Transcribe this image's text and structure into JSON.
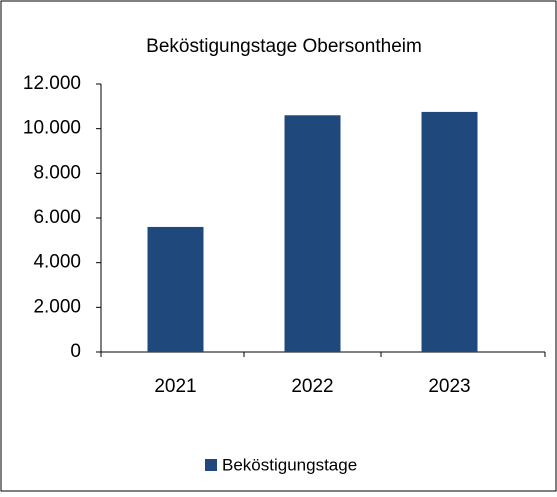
{
  "chart_data": {
    "type": "bar",
    "title": "Bekös­tigungstage Obersontheim",
    "categories": [
      "2021",
      "2022",
      "2023"
    ],
    "series": [
      {
        "name": "Beköstigungstage",
        "color": "#1f497d",
        "values": [
          5600,
          10600,
          10750
        ]
      }
    ],
    "ylim": [
      0,
      12000
    ],
    "yticks": [
      0,
      {
        "value": 2000,
        "label": "2.000"
      },
      {
        "value": 4000,
        "label": "4.000"
      },
      {
        "value": 6000,
        "label": "6.000"
      },
      {
        "value": 8000,
        "label": "8.000"
      },
      {
        "value": 10000,
        "label": "10.000"
      },
      {
        "value": 12000,
        "label": "12.000"
      }
    ],
    "grid": false,
    "legend": "bottom"
  }
}
